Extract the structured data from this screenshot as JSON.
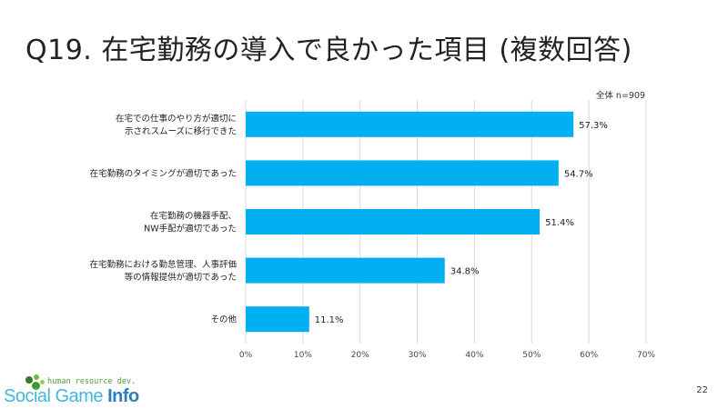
{
  "slide": {
    "title": "Q19. 在宅勤務の導入で良かった項目 (複数回答)",
    "page_number": "22"
  },
  "logo": {
    "tagline": "human resource dev.",
    "brand_main": "Social Game ",
    "brand_accent": "Info"
  },
  "chart_data": {
    "type": "bar",
    "orientation": "horizontal",
    "note": "全体 n=909",
    "categories": [
      [
        "在宅での仕事のやり方が適切に",
        "示されスムーズに移行できた"
      ],
      [
        "在宅勤務のタイミングが適切であった"
      ],
      [
        "在宅勤務の機器手配、",
        "NW手配が適切であった"
      ],
      [
        "在宅勤務における勤怠管理、人事評価",
        "等の情報提供が適切であった"
      ],
      [
        "その他"
      ]
    ],
    "series": [
      {
        "values": [
          57.3,
          54.7,
          51.4,
          34.8,
          11.1
        ]
      }
    ],
    "value_labels": [
      "57.3%",
      "54.7%",
      "51.4%",
      "34.8%",
      "11.1%"
    ],
    "xlim": [
      0,
      70
    ],
    "xticks": [
      0,
      10,
      20,
      30,
      40,
      50,
      60,
      70
    ],
    "xtick_labels": [
      "0%",
      "10%",
      "20%",
      "30%",
      "40%",
      "50%",
      "60%",
      "70%"
    ],
    "grid": true,
    "bar_color": "#00b0f0",
    "grid_color": "#d9d9d9"
  }
}
